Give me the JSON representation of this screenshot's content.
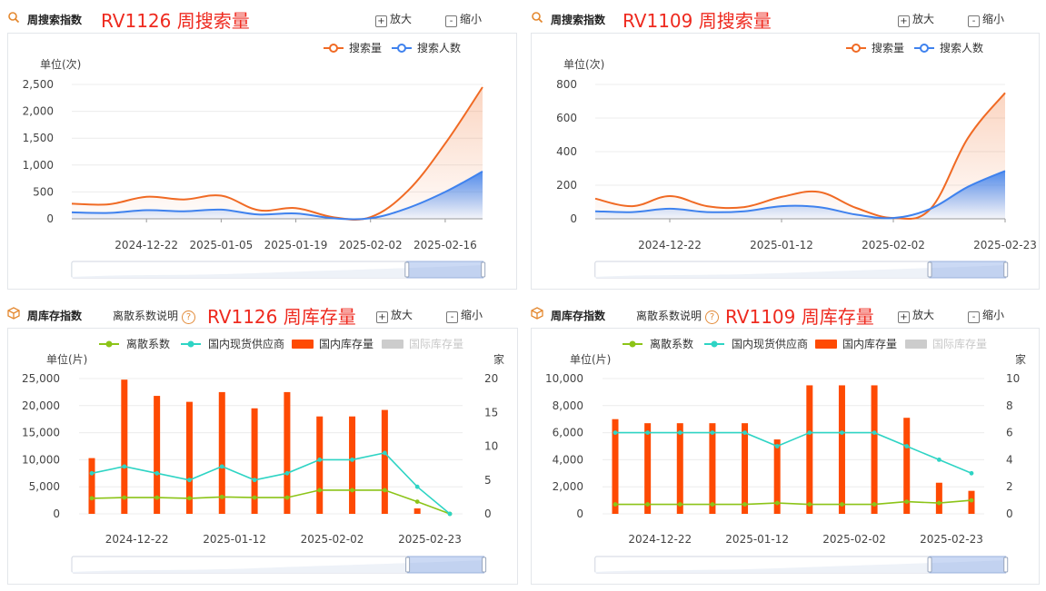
{
  "panels": [
    {
      "kind": "search",
      "header": {
        "label": "周搜索指数",
        "red_title": "RV1126 周搜索量",
        "zoom_in": "放大",
        "zoom_out": "缩小",
        "icon": "search-icon"
      },
      "unit": "单位(次)",
      "legend": [
        "搜索量",
        "搜索人数"
      ]
    },
    {
      "kind": "search",
      "header": {
        "label": "周搜索指数",
        "red_title": "RV1109 周搜索量",
        "zoom_in": "放大",
        "zoom_out": "缩小",
        "icon": "search-icon"
      },
      "unit": "单位(次)",
      "legend": [
        "搜索量",
        "搜索人数"
      ]
    },
    {
      "kind": "stock",
      "header": {
        "label": "周库存指数",
        "link": "离散系数说明",
        "red_title": "RV1126 周库存量",
        "zoom_in": "放大",
        "zoom_out": "缩小",
        "icon": "box-icon"
      },
      "unit": "单位(片)",
      "unit_right": "家",
      "legend": [
        "离散系数",
        "国内现货供应商",
        "国内库存量",
        "国际库存量"
      ]
    },
    {
      "kind": "stock",
      "header": {
        "label": "周库存指数",
        "link": "离散系数说明",
        "red_title": "RV1109 周库存量",
        "zoom_in": "放大",
        "zoom_out": "缩小",
        "icon": "box-icon"
      },
      "unit": "单位(片)",
      "unit_right": "家",
      "legend": [
        "离散系数",
        "国内现货供应商",
        "国内库存量",
        "国际库存量"
      ]
    }
  ],
  "colors": {
    "search_volume": "#f06a24",
    "search_people": "#3f82ee",
    "dispersion": "#8cc418",
    "suppliers": "#2ed4c4",
    "domestic_stock": "#fe4a03",
    "intl_stock": "#cccccc",
    "red_title": "#ee2a1f"
  },
  "chart_data": [
    {
      "type": "area",
      "title": "RV1126 周搜索量",
      "ylabel": "单位(次)",
      "ylim": [
        0,
        2500
      ],
      "yticks": [
        "0",
        "500",
        "1,000",
        "1,500",
        "2,000",
        "2,500"
      ],
      "xticks": [
        "2024-12-22",
        "2025-01-05",
        "2025-01-19",
        "2025-02-02",
        "2025-02-16"
      ],
      "x": [
        "2024-12-08",
        "2024-12-15",
        "2024-12-22",
        "2024-12-29",
        "2025-01-05",
        "2025-01-12",
        "2025-01-19",
        "2025-01-26",
        "2025-02-02",
        "2025-02-09",
        "2025-02-16",
        "2025-02-23"
      ],
      "series": [
        {
          "name": "搜索量",
          "values": [
            280,
            270,
            410,
            360,
            430,
            160,
            200,
            30,
            30,
            520,
            1400,
            2450
          ]
        },
        {
          "name": "搜索人数",
          "values": [
            120,
            110,
            160,
            140,
            170,
            80,
            100,
            10,
            10,
            200,
            500,
            880
          ]
        }
      ],
      "grid": true,
      "legend": "top-right"
    },
    {
      "type": "area",
      "title": "RV1109 周搜索量",
      "ylabel": "单位(次)",
      "ylim": [
        0,
        800
      ],
      "yticks": [
        "0",
        "200",
        "400",
        "600",
        "800"
      ],
      "xticks": [
        "2024-12-22",
        "2025-01-12",
        "2025-02-02",
        "2025-02-23"
      ],
      "x": [
        "2024-12-08",
        "2024-12-15",
        "2024-12-22",
        "2024-12-29",
        "2025-01-05",
        "2025-01-12",
        "2025-01-19",
        "2025-01-26",
        "2025-02-02",
        "2025-02-09",
        "2025-02-16",
        "2025-02-23"
      ],
      "series": [
        {
          "name": "搜索量",
          "values": [
            120,
            75,
            135,
            75,
            70,
            130,
            160,
            65,
            5,
            60,
            480,
            750
          ]
        },
        {
          "name": "搜索人数",
          "values": [
            45,
            40,
            60,
            40,
            45,
            75,
            70,
            25,
            5,
            60,
            190,
            285
          ]
        }
      ],
      "grid": true,
      "legend": "top-right"
    },
    {
      "type": "bar",
      "title": "RV1126 周库存量",
      "ylabel": "单位(片)",
      "ylabel_right": "家",
      "ylim": [
        0,
        25000
      ],
      "ylim_right": [
        0,
        20
      ],
      "yticks": [
        "0",
        "5,000",
        "10,000",
        "15,000",
        "20,000",
        "25,000"
      ],
      "yticks_right": [
        "0",
        "5",
        "10",
        "15",
        "20"
      ],
      "xticks": [
        "2024-12-22",
        "2025-01-12",
        "2025-02-02",
        "2025-02-23"
      ],
      "x": [
        "2024-12-08",
        "2024-12-15",
        "2024-12-22",
        "2024-12-29",
        "2025-01-05",
        "2025-01-12",
        "2025-01-19",
        "2025-01-26",
        "2025-02-02",
        "2025-02-09",
        "2025-02-16",
        "2025-02-23"
      ],
      "series": [
        {
          "name": "国内库存量",
          "axis": "left",
          "values": [
            10300,
            24800,
            21800,
            20700,
            22500,
            19500,
            22500,
            18000,
            18000,
            19200,
            1000,
            0
          ]
        },
        {
          "name": "离散系数",
          "axis": "right",
          "values": [
            2.3,
            2.4,
            2.4,
            2.3,
            2.5,
            2.4,
            2.4,
            3.5,
            3.5,
            3.5,
            1.8,
            0
          ]
        },
        {
          "name": "国内现货供应商",
          "axis": "right",
          "values": [
            6,
            7,
            6,
            5,
            7,
            5,
            6,
            8,
            8,
            9,
            4,
            0
          ]
        }
      ],
      "grid": true,
      "legend": "top"
    },
    {
      "type": "bar",
      "title": "RV1109 周库存量",
      "ylabel": "单位(片)",
      "ylabel_right": "家",
      "ylim": [
        0,
        10000
      ],
      "ylim_right": [
        0,
        10
      ],
      "yticks": [
        "0",
        "2,000",
        "4,000",
        "6,000",
        "8,000",
        "10,000"
      ],
      "yticks_right": [
        "0",
        "2",
        "4",
        "6",
        "8",
        "10"
      ],
      "xticks": [
        "2024-12-22",
        "2025-01-12",
        "2025-02-02",
        "2025-02-23"
      ],
      "x": [
        "2024-12-08",
        "2024-12-15",
        "2024-12-22",
        "2024-12-29",
        "2025-01-05",
        "2025-01-12",
        "2025-01-19",
        "2025-01-26",
        "2025-02-02",
        "2025-02-09",
        "2025-02-16",
        "2025-02-23"
      ],
      "series": [
        {
          "name": "国内库存量",
          "axis": "left",
          "values": [
            7000,
            6700,
            6700,
            6700,
            6700,
            5500,
            9500,
            9500,
            9500,
            7100,
            2300,
            1700
          ]
        },
        {
          "name": "离散系数",
          "axis": "right",
          "values": [
            0.7,
            0.7,
            0.7,
            0.7,
            0.7,
            0.8,
            0.7,
            0.7,
            0.7,
            0.9,
            0.8,
            1.0
          ]
        },
        {
          "name": "国内现货供应商",
          "axis": "right",
          "values": [
            6,
            6,
            6,
            6,
            6,
            5,
            6,
            6,
            6,
            5,
            4,
            3
          ]
        }
      ],
      "grid": true,
      "legend": "top"
    }
  ]
}
